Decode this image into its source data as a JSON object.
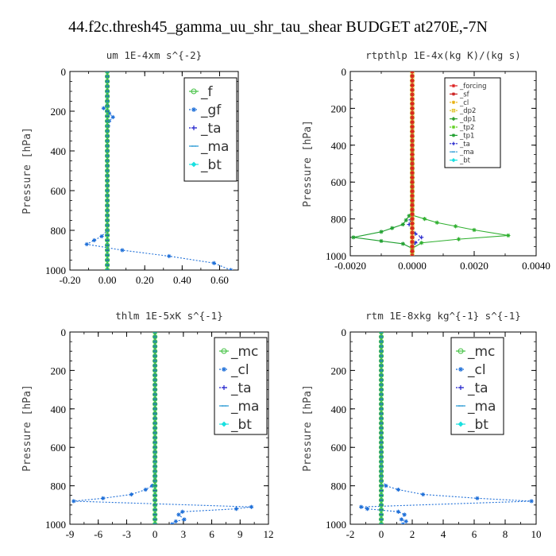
{
  "title": "44.f2c.thresh45_gamma_uu_shr_tau_shear  BUDGET at270E,-7N",
  "chart_data": [
    {
      "type": "line",
      "title": "um    1E-4xm s^{-2}",
      "ylabel": "Pressure [hPa]",
      "xlim": [
        -0.2,
        0.7
      ],
      "ylim": [
        0,
        1000
      ],
      "y_reversed": true,
      "xticks": [
        -0.2,
        0,
        0.2,
        0.4,
        0.6
      ],
      "xtick_labels": [
        "-0.20",
        "0.00",
        "0.20",
        "0.40",
        "0.60"
      ],
      "yticks": [
        0,
        200,
        400,
        600,
        800,
        1000
      ],
      "legend": "top-right",
      "series": [
        {
          "name": "_f",
          "color": "#40c040",
          "marker": "circle",
          "dash": "solid",
          "x": [
            0,
            0,
            0,
            0
          ],
          "y": [
            0,
            300,
            700,
            1000
          ]
        },
        {
          "name": "_gf",
          "color": "#1e6fd8",
          "marker": "star",
          "dash": "dotted",
          "x": [
            0,
            0,
            -0.02,
            0.01,
            0.03,
            0.01,
            0,
            0,
            -0.03,
            -0.07,
            -0.11,
            0.08,
            0.33,
            0.57,
            0.66
          ],
          "y": [
            0,
            170,
            185,
            210,
            230,
            250,
            300,
            800,
            830,
            850,
            870,
            900,
            930,
            965,
            1000
          ]
        },
        {
          "name": "_ta",
          "color": "#2222cc",
          "marker": "plus",
          "dash": "dotted",
          "x": [
            0,
            0
          ],
          "y": [
            0,
            1000
          ]
        },
        {
          "name": "_ma",
          "color": "#2a9ad4",
          "marker": "dash",
          "dash": "dashed",
          "x": [
            0,
            0
          ],
          "y": [
            0,
            1000
          ]
        },
        {
          "name": "_bt",
          "color": "#19e0e0",
          "marker": "diamond",
          "dash": "solid",
          "x": [
            0,
            0
          ],
          "y": [
            0,
            1000
          ]
        }
      ]
    },
    {
      "type": "line",
      "title": "rtpthlp    1E-4x(kg K)/(kg s)",
      "ylabel": "Pressure [hPa]",
      "xlim": [
        -0.002,
        0.004
      ],
      "ylim": [
        0,
        1000
      ],
      "y_reversed": true,
      "xticks": [
        -0.002,
        0,
        0.002,
        0.004
      ],
      "xtick_labels": [
        "-0.0020",
        "0.0000",
        "0.0020",
        "0.0040"
      ],
      "yticks": [
        0,
        200,
        400,
        600,
        800,
        1000
      ],
      "legend": "top-right",
      "series": [
        {
          "name": "_forcing",
          "color": "#dd2020",
          "marker": "star",
          "dash": "solid",
          "x": [
            0,
            0
          ],
          "y": [
            0,
            1000
          ]
        },
        {
          "name": "_sf",
          "color": "#cc2222",
          "marker": "star",
          "dash": "solid",
          "x": [
            0,
            0
          ],
          "y": [
            0,
            1000
          ]
        },
        {
          "name": "_cl",
          "color": "#e8b010",
          "marker": "star",
          "dash": "dotted",
          "x": [
            0,
            0
          ],
          "y": [
            0,
            1000
          ]
        },
        {
          "name": "_dp2",
          "color": "#e0c020",
          "marker": "square",
          "dash": "dotted",
          "x": [
            0,
            0
          ],
          "y": [
            0,
            1000
          ]
        },
        {
          "name": "_dp1",
          "color": "#30a030",
          "marker": "diamond",
          "dash": "solid",
          "x": [
            0,
            0
          ],
          "y": [
            0,
            1000
          ]
        },
        {
          "name": "_tp2",
          "color": "#60d020",
          "marker": "star",
          "dash": "dotted",
          "x": [
            0,
            0
          ],
          "y": [
            0,
            1000
          ]
        },
        {
          "name": "_tp1",
          "color": "#20a030",
          "marker": "star",
          "dash": "solid",
          "x": [
            0,
            0,
            -0.0003,
            -0.001,
            -0.0019,
            -0.001,
            -0.0003,
            0,
            0
          ],
          "y": [
            0,
            760,
            830,
            870,
            900,
            920,
            935,
            960,
            1000
          ]
        },
        {
          "name": "_ta",
          "color": "#2222cc",
          "marker": "plus",
          "dash": "dotted",
          "x": [
            0,
            0,
            -0.0001,
            0.0001,
            0.0003,
            0.0001,
            0,
            0
          ],
          "y": [
            0,
            780,
            830,
            880,
            900,
            930,
            950,
            1000
          ]
        },
        {
          "name": "_ma",
          "color": "#2a9ad4",
          "marker": "dash",
          "dash": "dashed",
          "x": [
            0,
            0
          ],
          "y": [
            0,
            1000
          ]
        },
        {
          "name": "_bt",
          "color": "#19e0e0",
          "marker": "diamond",
          "dash": "solid",
          "x": [
            0,
            0
          ],
          "y": [
            0,
            1000
          ]
        }
      ],
      "extra": {
        "name": "",
        "color": "#30b030",
        "x": [
          0,
          0,
          0.0008,
          0.002,
          0.0031,
          0.0015,
          0.0003,
          0,
          0
        ],
        "y": [
          0,
          780,
          820,
          860,
          890,
          910,
          930,
          960,
          1000
        ]
      }
    },
    {
      "type": "line",
      "title": "thlm    1E-5xK s^{-1}",
      "ylabel": "Pressure [hPa]",
      "xlim": [
        -9,
        12
      ],
      "ylim": [
        0,
        1000
      ],
      "y_reversed": true,
      "xticks": [
        -9,
        -6,
        -3,
        0,
        3,
        6,
        9,
        12
      ],
      "xtick_labels": [
        "-9",
        "-6",
        "-3",
        "0",
        "3",
        "6",
        "9",
        "12"
      ],
      "yticks": [
        0,
        200,
        400,
        600,
        800,
        1000
      ],
      "legend": "top-right",
      "series": [
        {
          "name": "_mc",
          "color": "#40c040",
          "marker": "circle",
          "dash": "solid",
          "x": [
            0,
            0
          ],
          "y": [
            0,
            1000
          ]
        },
        {
          "name": "_cl",
          "color": "#1e6fd8",
          "marker": "star",
          "dash": "dotted",
          "x": [
            0,
            0,
            -0.3,
            -1,
            -2.5,
            -5.5,
            -8.6,
            10.2,
            8.6,
            2.9,
            2.5,
            3.1,
            2.2,
            1.8
          ],
          "y": [
            0,
            770,
            800,
            820,
            845,
            865,
            880,
            910,
            920,
            935,
            950,
            975,
            985,
            1000
          ]
        },
        {
          "name": "_ta",
          "color": "#2222cc",
          "marker": "plus",
          "dash": "dotted",
          "x": [
            0,
            0
          ],
          "y": [
            0,
            1000
          ]
        },
        {
          "name": "_ma",
          "color": "#2a9ad4",
          "marker": "dash",
          "dash": "dashed",
          "x": [
            0,
            0
          ],
          "y": [
            0,
            1000
          ]
        },
        {
          "name": "_bt",
          "color": "#19e0e0",
          "marker": "diamond",
          "dash": "solid",
          "x": [
            0,
            0
          ],
          "y": [
            0,
            1000
          ]
        }
      ]
    },
    {
      "type": "line",
      "title": "rtm    1E-8xkg kg^{-1} s^{-1}",
      "ylabel": "Pressure [hPa]",
      "xlim": [
        -2,
        10
      ],
      "ylim": [
        0,
        1000
      ],
      "y_reversed": true,
      "xticks": [
        -2,
        0,
        2,
        4,
        6,
        8,
        10
      ],
      "xtick_labels": [
        "-2",
        "0",
        "2",
        "4",
        "6",
        "8",
        "10"
      ],
      "yticks": [
        0,
        200,
        400,
        600,
        800,
        1000
      ],
      "legend": "top-right",
      "series": [
        {
          "name": "_mc",
          "color": "#40c040",
          "marker": "circle",
          "dash": "solid",
          "x": [
            0,
            0
          ],
          "y": [
            0,
            1000
          ]
        },
        {
          "name": "_cl",
          "color": "#1e6fd8",
          "marker": "star",
          "dash": "dotted",
          "x": [
            0,
            0,
            0.3,
            1.1,
            2.7,
            6.2,
            9.7,
            -1.3,
            -0.9,
            1.1,
            1.5,
            1.3,
            1.6,
            1.4
          ],
          "y": [
            0,
            770,
            800,
            820,
            845,
            865,
            880,
            910,
            920,
            935,
            950,
            975,
            985,
            1000
          ]
        },
        {
          "name": "_ta",
          "color": "#2222cc",
          "marker": "plus",
          "dash": "dotted",
          "x": [
            0,
            0
          ],
          "y": [
            0,
            1000
          ]
        },
        {
          "name": "_ma",
          "color": "#2a9ad4",
          "marker": "dash",
          "dash": "dashed",
          "x": [
            0,
            0
          ],
          "y": [
            0,
            1000
          ]
        },
        {
          "name": "_bt",
          "color": "#19e0e0",
          "marker": "diamond",
          "dash": "solid",
          "x": [
            0,
            0
          ],
          "y": [
            0,
            1000
          ]
        }
      ]
    }
  ]
}
